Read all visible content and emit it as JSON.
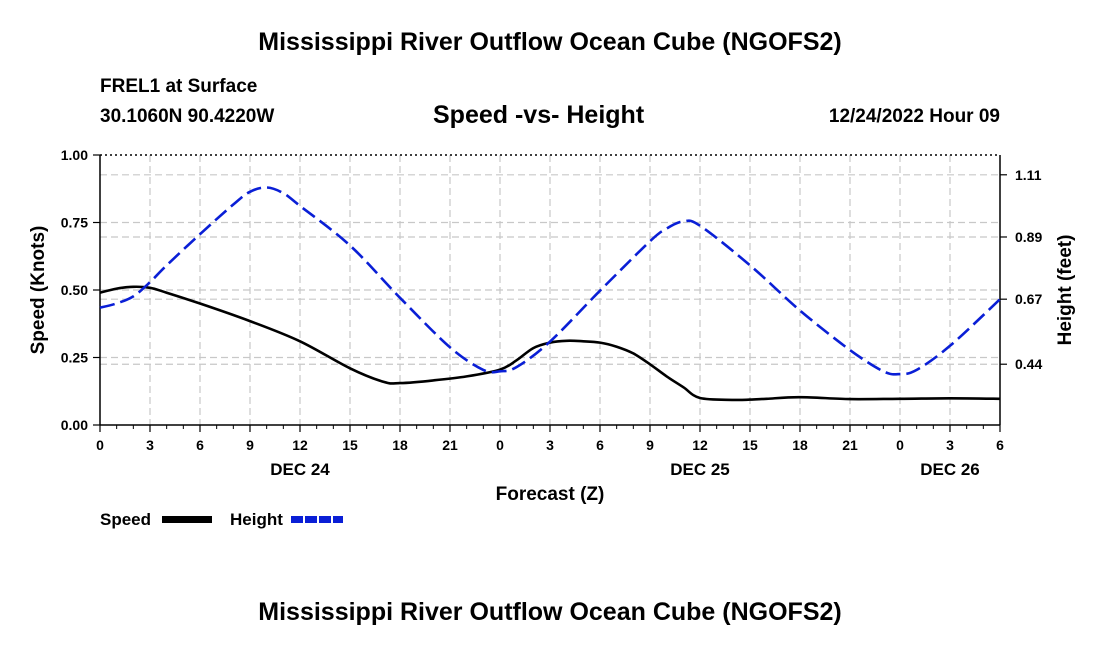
{
  "page": {
    "title": "Mississippi River Outflow Ocean Cube (NGOFS2)",
    "footer_title": "Mississippi River Outflow Ocean Cube (NGOFS2)",
    "station": "FREL1 at Surface",
    "coords": "30.1060N  90.4220W",
    "plot_title": "Speed -vs- Height",
    "datetime": "12/24/2022 Hour 09"
  },
  "legend": {
    "speed_label": "Speed",
    "height_label": "Height"
  },
  "chart_data": {
    "type": "line",
    "title": "Speed -vs- Height",
    "xlabel": "Forecast (Z)",
    "ylabel": "Speed (Knots)",
    "y2label": "Height (feet)",
    "xlim": [
      0,
      54
    ],
    "ylim": [
      0,
      1.0
    ],
    "y2lim": [
      0.225,
      1.18
    ],
    "x_ticks": [
      0,
      3,
      6,
      9,
      12,
      15,
      18,
      21,
      24,
      27,
      30,
      33,
      36,
      39,
      42,
      45,
      48,
      51,
      54
    ],
    "x_tick_labels": [
      "0",
      "3",
      "6",
      "9",
      "12",
      "15",
      "18",
      "21",
      "0",
      "3",
      "6",
      "9",
      "12",
      "15",
      "18",
      "21",
      "0",
      "3",
      "6"
    ],
    "y_ticks": [
      0,
      0.25,
      0.5,
      0.75,
      1.0
    ],
    "y_tick_labels": [
      "0.00",
      "0.25",
      "0.50",
      "0.75",
      "1.00"
    ],
    "y2_ticks": [
      0.44,
      0.67,
      0.89,
      1.11
    ],
    "y2_tick_labels": [
      "0.44",
      "0.67",
      "0.89",
      "1.11"
    ],
    "date_labels": [
      {
        "x": 12,
        "label": "DEC 24"
      },
      {
        "x": 36,
        "label": "DEC 25"
      },
      {
        "x": 51,
        "label": "DEC 26"
      }
    ],
    "series": [
      {
        "name": "Speed",
        "axis": "left",
        "color": "#000000",
        "dash": "solid",
        "x": [
          0,
          1,
          2,
          3,
          4,
          6,
          9,
          12,
          15,
          17,
          18,
          20,
          22,
          24,
          25,
          26,
          27,
          28,
          29,
          30,
          31,
          32,
          33,
          34,
          35,
          36,
          38,
          39,
          40,
          42,
          45,
          48,
          51,
          54
        ],
        "y": [
          0.49,
          0.505,
          0.512,
          0.508,
          0.49,
          0.45,
          0.385,
          0.31,
          0.21,
          0.16,
          0.155,
          0.165,
          0.18,
          0.205,
          0.24,
          0.285,
          0.305,
          0.312,
          0.31,
          0.305,
          0.29,
          0.265,
          0.225,
          0.18,
          0.14,
          0.1,
          0.093,
          0.094,
          0.097,
          0.103,
          0.096,
          0.097,
          0.099,
          0.097
        ]
      },
      {
        "name": "Height",
        "axis": "right",
        "color": "#0a1fd6",
        "dash": "dashed",
        "x": [
          0,
          1,
          2,
          3,
          4,
          6,
          8,
          9,
          10,
          11,
          12,
          15,
          18,
          21,
          23,
          24,
          25,
          27,
          30,
          33,
          34,
          35,
          36,
          39,
          42,
          45,
          47,
          48,
          49,
          51,
          54
        ],
        "y": [
          0.64,
          0.655,
          0.68,
          0.73,
          0.79,
          0.9,
          1.005,
          1.05,
          1.065,
          1.045,
          1.0,
          0.86,
          0.675,
          0.5,
          0.42,
          0.415,
          0.43,
          0.52,
          0.7,
          0.875,
          0.92,
          0.945,
          0.93,
          0.79,
          0.63,
          0.49,
          0.415,
          0.405,
          0.42,
          0.505,
          0.67
        ]
      }
    ]
  }
}
